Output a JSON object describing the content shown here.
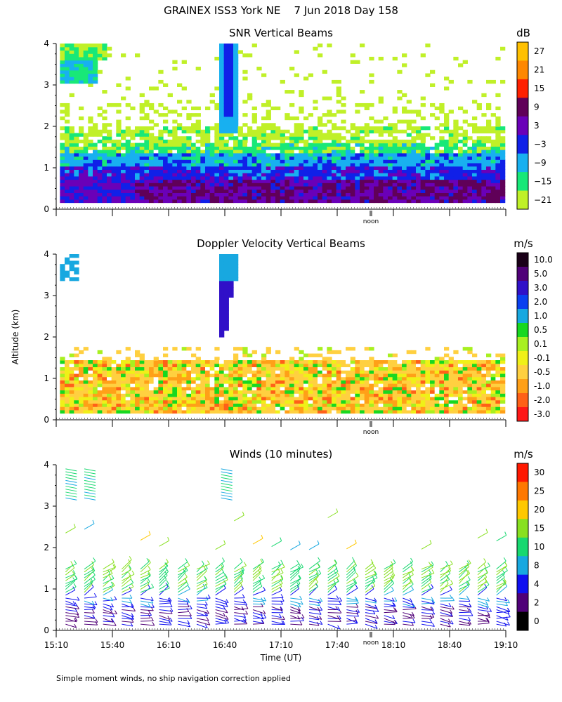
{
  "figure": {
    "title": "GRAINEX ISS3 York NE    7 Jun 2018 Day 158",
    "y_axis_label": "Altitude (km)",
    "x_axis_label": "Time (UT)",
    "x_tick_labels": [
      "15:10",
      "15:40",
      "16:10",
      "16:40",
      "17:10",
      "17:40",
      "18:10",
      "18:40",
      "19:10"
    ],
    "noon_label": "noon",
    "footnote": "Simple moment winds, no ship navigation correction applied"
  },
  "chart_data": [
    {
      "type": "heatmap",
      "title": "SNR Vertical Beams",
      "xlabel": "",
      "ylabel": "Altitude (km)",
      "xlim": [
        "15:10",
        "19:10"
      ],
      "ylim": [
        0,
        4
      ],
      "y_ticks": [
        "0",
        "1",
        "2",
        "3",
        "4"
      ],
      "colorbar": {
        "unit": "dB",
        "labels": [
          "27",
          "21",
          "15",
          "9",
          "3",
          "−3",
          "−9",
          "−15",
          "−21"
        ],
        "colors": [
          "#ffc000",
          "#ff8800",
          "#ff2000",
          "#600058",
          "#6a00b8",
          "#1020e8",
          "#18b0f0",
          "#18e878",
          "#c0f028"
        ]
      },
      "features": [
        {
          "layer": "0-0.7 km",
          "value_db": "3 to 9"
        },
        {
          "layer": "0.7-1.3 km",
          "value_db": "-3 to 3"
        },
        {
          "layer": "1.3-2.0 km",
          "value_db": "-21 to -9"
        },
        {
          "plume": "16:40-16:50",
          "altitude_km": "2 to 4",
          "value_db": "-9 to -3"
        }
      ]
    },
    {
      "type": "heatmap",
      "title": "Doppler Velocity Vertical Beams",
      "xlabel": "",
      "ylabel": "Altitude (km)",
      "xlim": [
        "15:10",
        "19:10"
      ],
      "ylim": [
        0,
        4
      ],
      "y_ticks": [
        "0",
        "1",
        "2",
        "3",
        "4"
      ],
      "colorbar": {
        "unit": "m/s",
        "labels": [
          "10.0",
          "5.0",
          "3.0",
          "2.0",
          "1.0",
          "0.5",
          "0.1",
          "-0.1",
          "-0.5",
          "-1.0",
          "-2.0",
          "-3.0"
        ],
        "colors": [
          "#1a0018",
          "#500078",
          "#3010c8",
          "#0a40f0",
          "#18a8e0",
          "#18d820",
          "#a8f020",
          "#f0f018",
          "#ffd040",
          "#ffa018",
          "#ff6018",
          "#ff1818"
        ]
      },
      "features": [
        {
          "layer": "0-1.4 km",
          "value_ms": "-1.0 to 0.5"
        },
        {
          "plume": "16:40-16:50",
          "altitude_km": "1.8 to 4",
          "value_ms": "1.0 to 3.0"
        }
      ]
    },
    {
      "type": "scatter",
      "title": "Winds (10 minutes)",
      "xlabel": "Time (UT)",
      "ylabel": "Altitude (km)",
      "xlim": [
        "15:10",
        "19:10"
      ],
      "ylim": [
        0,
        4
      ],
      "y_ticks": [
        "0",
        "1",
        "2",
        "3",
        "4"
      ],
      "colorbar": {
        "unit": "m/s",
        "labels": [
          "30",
          "25",
          "20",
          "15",
          "10",
          "8",
          "4",
          "2",
          "0"
        ],
        "colors": [
          "#ff1800",
          "#ff7800",
          "#ffc800",
          "#88e020",
          "#18d870",
          "#18a8e0",
          "#1010f0",
          "#500078",
          "#000000"
        ]
      },
      "profile_times": [
        "15:15",
        "15:25",
        "15:35",
        "15:45",
        "15:55",
        "16:05",
        "16:15",
        "16:25",
        "16:35",
        "16:45",
        "16:55",
        "17:05",
        "17:15",
        "17:25",
        "17:35",
        "17:45",
        "17:55",
        "18:05",
        "18:15",
        "18:25",
        "18:35",
        "18:45",
        "18:55",
        "19:05"
      ],
      "levels": [
        {
          "altitude_range_km": "0-0.8",
          "speed_ms": "2 to 4"
        },
        {
          "altitude_range_km": "0.8-1.5",
          "speed_ms": "8 to 15"
        },
        {
          "altitude_range_km": "2-4",
          "speed_ms": "10 to 30",
          "coverage": "sparse"
        }
      ]
    }
  ]
}
